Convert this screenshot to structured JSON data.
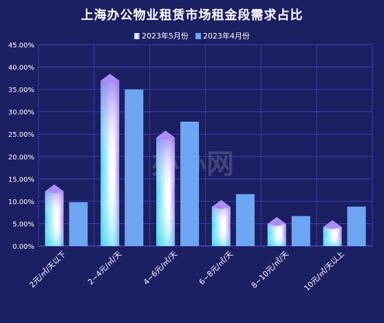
{
  "chart_data": {
    "type": "bar",
    "title": "上海办公物业租赁市场租金段需求占比",
    "categories": [
      "2元/㎡/天以下",
      "2~4元/㎡/天",
      "4~6元/㎡/天",
      "6~8元/㎡/天",
      "8~10元/㎡/天",
      "10元/㎡/天以上"
    ],
    "series": [
      {
        "name": "2023年5月份",
        "values": [
          13.0,
          37.7,
          25.0,
          9.5,
          5.7,
          5.0
        ],
        "color": "#7fd6f6"
      },
      {
        "name": "2023年4月份",
        "values": [
          9.8,
          35.0,
          27.8,
          11.6,
          6.7,
          8.8
        ],
        "color": "#6da5f2"
      }
    ],
    "ylim": [
      0,
      45
    ],
    "yticks": [
      "0.00%",
      "5.00%",
      "10.00%",
      "15.00%",
      "20.00%",
      "25.00%",
      "30.00%",
      "35.00%",
      "40.00%",
      "45.00%"
    ],
    "legend_position": "top-center",
    "grid": true,
    "watermark": "办办网",
    "background": "#1d1f63",
    "grid_color": "#3c3fa8"
  }
}
